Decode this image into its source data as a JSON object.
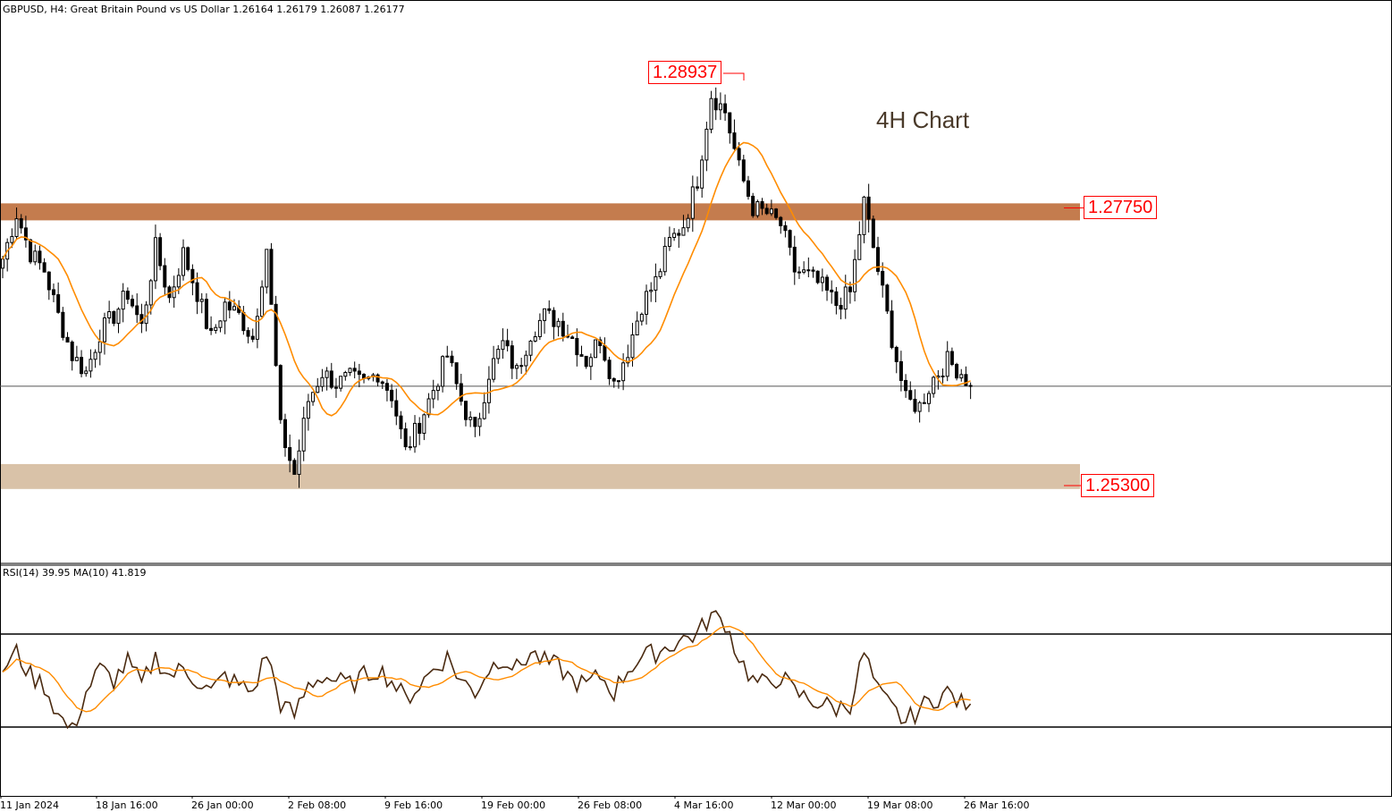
{
  "header": {
    "symbol_line": "GBPUSD, H4:  Great Britain Pound vs US Dollar  1.26164 1.26179 1.26087 1.26177",
    "rsi_line": "RSI(14) 39.95 MA(10) 41.819"
  },
  "annotation": "4H Chart",
  "levels": {
    "high_label": "1.28937",
    "resistance_label": "1.27750",
    "support_label": "1.25300"
  },
  "colors": {
    "candle": "#000000",
    "ma": "#ff8c00",
    "rsi": "#4a2a10",
    "resistance_zone": "#c47c4e",
    "support_zone": "#d9c2a8",
    "label_red": "#ff0000"
  },
  "x_axis_labels": [
    "11 Jan 2024",
    "18 Jan 16:00",
    "26 Jan 00:00",
    "2 Feb 08:00",
    "9 Feb 16:00",
    "19 Feb 00:00",
    "26 Feb 08:00",
    "4 Mar 16:00",
    "12 Mar 00:00",
    "19 Mar 08:00",
    "26 Mar 16:00"
  ],
  "chart_data": [
    {
      "type": "candlestick",
      "title": "GBPUSD, H4",
      "ylim": [
        1.2485,
        1.2915
      ],
      "current_price": 1.26177,
      "zones": [
        {
          "name": "resistance",
          "low": 1.2764,
          "high": 1.2779,
          "label": "1.27750"
        },
        {
          "name": "support",
          "low": 1.2527,
          "high": 1.2549,
          "label": "1.25300"
        }
      ],
      "marked_high": 1.28937,
      "x_tick_labels": [
        "11 Jan 2024",
        "18 Jan 16:00",
        "26 Jan 00:00",
        "2 Feb 08:00",
        "9 Feb 16:00",
        "19 Feb 00:00",
        "26 Feb 08:00",
        "4 Mar 16:00",
        "12 Mar 00:00",
        "19 Mar 08:00",
        "26 Mar 16:00"
      ],
      "close_path": [
        [
          0,
          1.273
        ],
        [
          3,
          1.277
        ],
        [
          6,
          1.2735
        ],
        [
          9,
          1.272
        ],
        [
          12,
          1.268
        ],
        [
          15,
          1.2645
        ],
        [
          18,
          1.263
        ],
        [
          21,
          1.2665
        ],
        [
          24,
          1.268
        ],
        [
          27,
          1.27
        ],
        [
          30,
          1.267
        ],
        [
          33,
          1.274
        ],
        [
          36,
          1.2695
        ],
        [
          39,
          1.2735
        ],
        [
          42,
          1.27
        ],
        [
          45,
          1.266
        ],
        [
          48,
          1.269
        ],
        [
          51,
          1.268
        ],
        [
          54,
          1.266
        ],
        [
          57,
          1.274
        ],
        [
          60,
          1.258
        ],
        [
          63,
          1.254
        ],
        [
          66,
          1.2605
        ],
        [
          69,
          1.263
        ],
        [
          72,
          1.262
        ],
        [
          75,
          1.2625
        ],
        [
          78,
          1.262
        ],
        [
          81,
          1.263
        ],
        [
          84,
          1.261
        ],
        [
          87,
          1.256
        ],
        [
          90,
          1.2585
        ],
        [
          93,
          1.2615
        ],
        [
          96,
          1.2645
        ],
        [
          99,
          1.2605
        ],
        [
          102,
          1.2575
        ],
        [
          105,
          1.263
        ],
        [
          108,
          1.2655
        ],
        [
          111,
          1.263
        ],
        [
          114,
          1.2665
        ],
        [
          117,
          1.268
        ],
        [
          120,
          1.2675
        ],
        [
          123,
          1.266
        ],
        [
          126,
          1.264
        ],
        [
          129,
          1.266
        ],
        [
          132,
          1.262
        ],
        [
          135,
          1.265
        ],
        [
          138,
          1.269
        ],
        [
          141,
          1.271
        ],
        [
          144,
          1.2745
        ],
        [
          147,
          1.276
        ],
        [
          150,
          1.28
        ],
        [
          153,
          1.2875
        ],
        [
          156,
          1.286
        ],
        [
          159,
          1.281
        ],
        [
          162,
          1.2775
        ],
        [
          165,
          1.277
        ],
        [
          168,
          1.276
        ],
        [
          171,
          1.272
        ],
        [
          174,
          1.2715
        ],
        [
          177,
          1.2705
        ],
        [
          180,
          1.269
        ],
        [
          183,
          1.27
        ],
        [
          186,
          1.278
        ],
        [
          189,
          1.272
        ],
        [
          192,
          1.266
        ],
        [
          195,
          1.2605
        ],
        [
          198,
          1.26
        ],
        [
          201,
          1.2625
        ],
        [
          204,
          1.264
        ],
        [
          207,
          1.263
        ],
        [
          209,
          1.2618
        ]
      ]
    },
    {
      "type": "line",
      "title": "RSI(14)",
      "ylim": [
        0,
        100
      ],
      "levels": [
        70,
        30
      ],
      "series": [
        {
          "name": "RSI(14)",
          "last": 39.95
        },
        {
          "name": "MA(10)",
          "last": 41.819
        }
      ],
      "rsi_path": [
        [
          0,
          55
        ],
        [
          3,
          62
        ],
        [
          6,
          52
        ],
        [
          9,
          48
        ],
        [
          12,
          35
        ],
        [
          15,
          28
        ],
        [
          18,
          45
        ],
        [
          21,
          55
        ],
        [
          24,
          50
        ],
        [
          27,
          58
        ],
        [
          30,
          48
        ],
        [
          33,
          60
        ],
        [
          36,
          52
        ],
        [
          39,
          55
        ],
        [
          42,
          50
        ],
        [
          45,
          45
        ],
        [
          48,
          52
        ],
        [
          51,
          48
        ],
        [
          54,
          45
        ],
        [
          57,
          62
        ],
        [
          60,
          40
        ],
        [
          63,
          35
        ],
        [
          66,
          48
        ],
        [
          69,
          52
        ],
        [
          72,
          50
        ],
        [
          75,
          48
        ],
        [
          78,
          52
        ],
        [
          81,
          55
        ],
        [
          84,
          50
        ],
        [
          87,
          42
        ],
        [
          90,
          48
        ],
        [
          93,
          55
        ],
        [
          96,
          60
        ],
        [
          99,
          50
        ],
        [
          102,
          45
        ],
        [
          105,
          55
        ],
        [
          108,
          60
        ],
        [
          111,
          55
        ],
        [
          114,
          62
        ],
        [
          117,
          58
        ],
        [
          120,
          56
        ],
        [
          123,
          50
        ],
        [
          126,
          48
        ],
        [
          129,
          52
        ],
        [
          132,
          45
        ],
        [
          135,
          55
        ],
        [
          138,
          60
        ],
        [
          141,
          62
        ],
        [
          144,
          65
        ],
        [
          147,
          68
        ],
        [
          150,
          70
        ],
        [
          153,
          78
        ],
        [
          156,
          75
        ],
        [
          159,
          60
        ],
        [
          162,
          50
        ],
        [
          165,
          48
        ],
        [
          168,
          52
        ],
        [
          171,
          45
        ],
        [
          174,
          42
        ],
        [
          177,
          40
        ],
        [
          180,
          38
        ],
        [
          183,
          40
        ],
        [
          186,
          62
        ],
        [
          189,
          45
        ],
        [
          192,
          38
        ],
        [
          195,
          32
        ],
        [
          198,
          38
        ],
        [
          201,
          42
        ],
        [
          204,
          45
        ],
        [
          207,
          40
        ],
        [
          209,
          39.95
        ]
      ]
    }
  ]
}
